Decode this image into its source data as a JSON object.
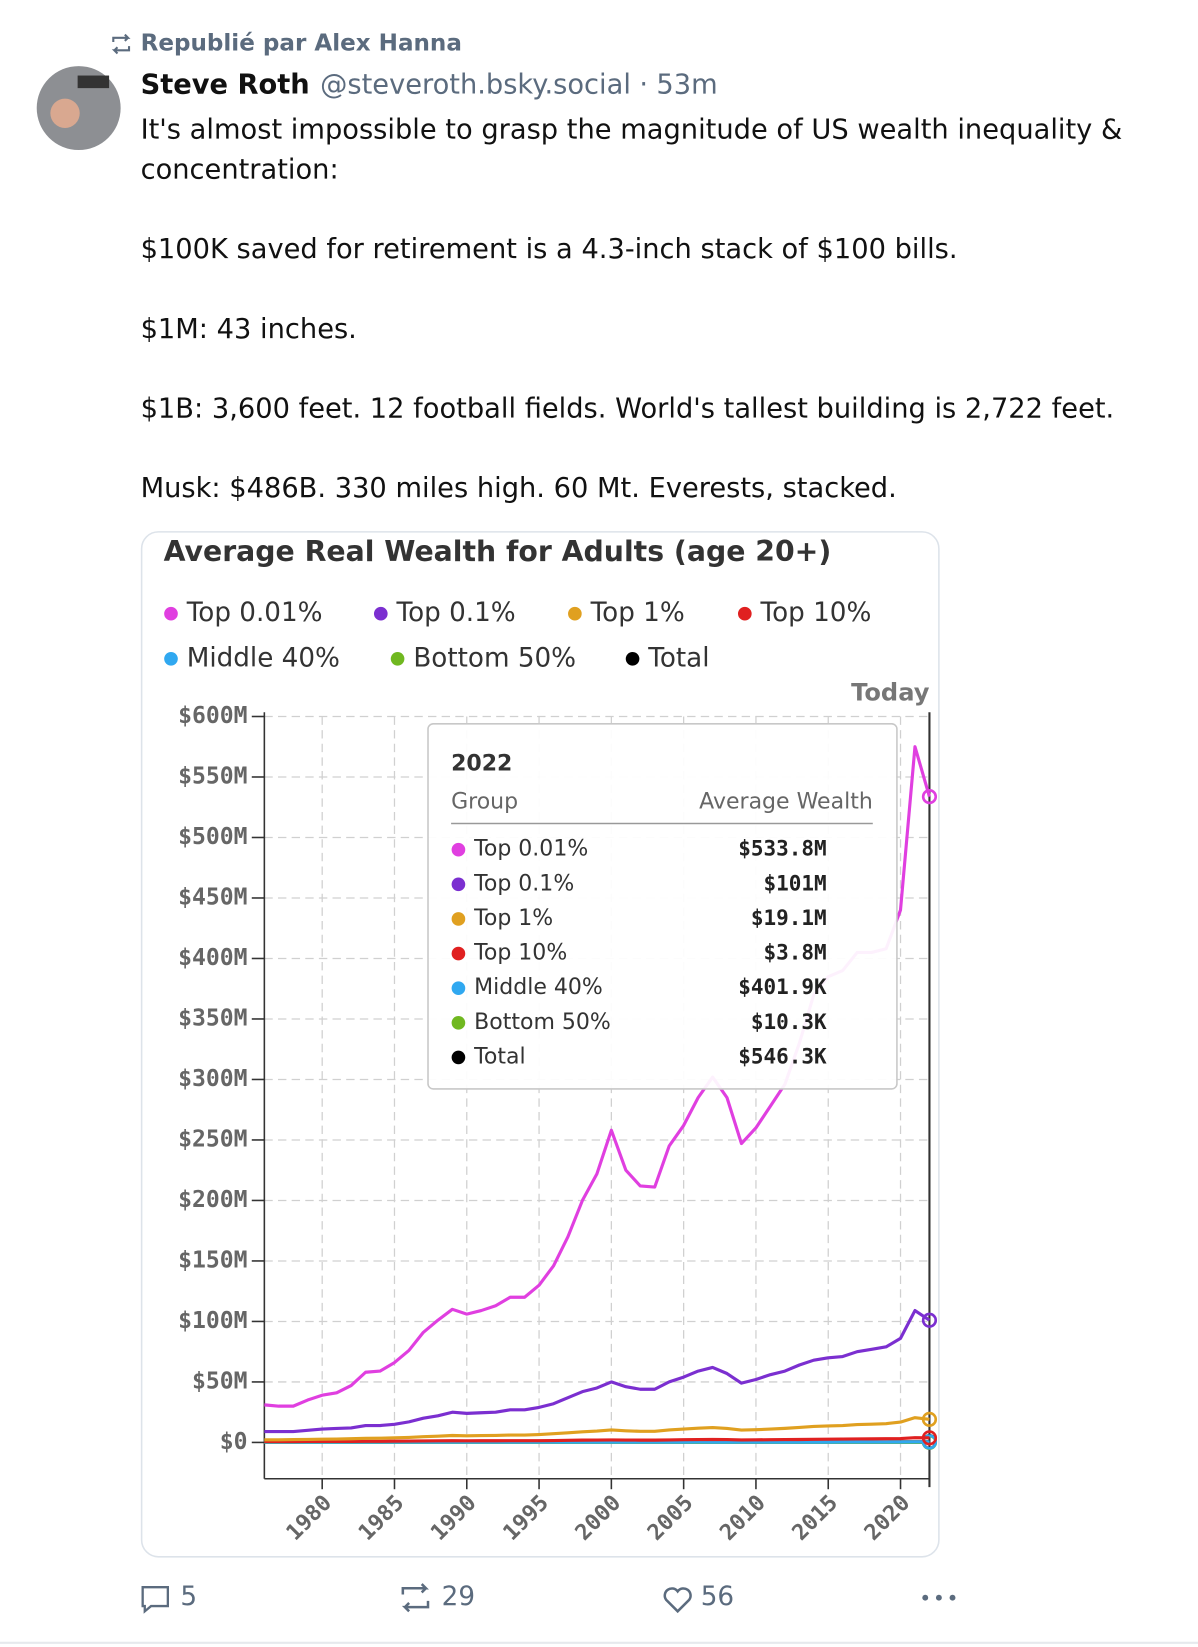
{
  "repost": "Republié par Alex Hanna",
  "author": {
    "name": "Steve Roth",
    "handle": "@steveroth.bsky.social",
    "time": "53m"
  },
  "text": [
    "It's almost impossible to grasp the magnitude of US wealth inequality & concentration:",
    "$100K saved for retirement is a 4.3-inch stack of $100 bills.",
    "$1M: 43 inches.",
    "$1B: 3,600 feet. 12 football fields. World's tallest building is 2,722 feet.",
    "Musk: $486B. 330 miles high. 60 Mt. Everests, stacked."
  ],
  "actions": {
    "replies": 5,
    "reposts": 29,
    "likes": 56
  },
  "chart_data": {
    "type": "line",
    "title": "Average Real Wealth for Adults (age 20+)",
    "annotation": "Today",
    "x": [
      1976,
      1977,
      1978,
      1979,
      1980,
      1981,
      1982,
      1983,
      1984,
      1985,
      1986,
      1987,
      1988,
      1989,
      1990,
      1991,
      1992,
      1993,
      1994,
      1995,
      1996,
      1997,
      1998,
      1999,
      2000,
      2001,
      2002,
      2003,
      2004,
      2005,
      2006,
      2007,
      2008,
      2009,
      2010,
      2011,
      2012,
      2013,
      2014,
      2015,
      2016,
      2017,
      2018,
      2019,
      2020,
      2021,
      2022
    ],
    "xlim": [
      1976,
      2022
    ],
    "xticks": [
      1980,
      1985,
      1990,
      1995,
      2000,
      2005,
      2010,
      2015,
      2020
    ],
    "ylim": [
      -30,
      600
    ],
    "yticks": [
      {
        "value": 0,
        "label": "$0"
      },
      {
        "value": 50,
        "label": "$50M"
      },
      {
        "value": 100,
        "label": "$100M"
      },
      {
        "value": 150,
        "label": "$150M"
      },
      {
        "value": 200,
        "label": "$200M"
      },
      {
        "value": 250,
        "label": "$250M"
      },
      {
        "value": 300,
        "label": "$300M"
      },
      {
        "value": 350,
        "label": "$350M"
      },
      {
        "value": 400,
        "label": "$400M"
      },
      {
        "value": 450,
        "label": "$450M"
      },
      {
        "value": 500,
        "label": "$500M"
      },
      {
        "value": 550,
        "label": "$550M"
      },
      {
        "value": 600,
        "label": "$600M"
      }
    ],
    "grid": true,
    "series": [
      {
        "name": "Top 0.01%",
        "color": "#e03fe0",
        "values": [
          31,
          30,
          30,
          35,
          39,
          41,
          47,
          58,
          59,
          66,
          76,
          91,
          101,
          110,
          106,
          109,
          113,
          120,
          120,
          130,
          146,
          170,
          200,
          222,
          258,
          225,
          212,
          211,
          245,
          262,
          285,
          302,
          285,
          247,
          260,
          278,
          296,
          330,
          370,
          385,
          390,
          405,
          405,
          408,
          440,
          575,
          533.8
        ]
      },
      {
        "name": "Top 0.1%",
        "color": "#7b2fd0",
        "values": [
          9,
          9,
          9,
          10,
          11,
          11.5,
          12,
          14,
          14,
          15,
          17,
          20,
          22,
          25,
          24,
          24.5,
          25,
          27,
          27,
          29,
          32,
          37,
          42,
          45,
          50,
          46,
          44,
          44,
          50,
          54,
          59,
          62,
          57,
          49,
          52,
          56,
          59,
          64,
          68,
          70,
          71,
          75,
          77,
          79,
          86,
          109,
          101
        ]
      },
      {
        "name": "Top 1%",
        "color": "#e0a020",
        "values": [
          2.2,
          2.2,
          2.3,
          2.5,
          2.7,
          2.8,
          3,
          3.4,
          3.5,
          3.8,
          4.2,
          4.8,
          5.2,
          5.7,
          5.5,
          5.6,
          5.8,
          6.1,
          6.1,
          6.5,
          7.2,
          8,
          8.8,
          9.4,
          10.3,
          9.6,
          9.2,
          9.2,
          10.3,
          11,
          11.8,
          12.3,
          11.5,
          10.2,
          10.5,
          11,
          11.6,
          12.4,
          13.2,
          13.6,
          14,
          14.7,
          15.1,
          15.5,
          16.8,
          20.5,
          19.1
        ]
      },
      {
        "name": "Top 10%",
        "color": "#e02020",
        "values": [
          0.7,
          0.7,
          0.72,
          0.76,
          0.8,
          0.82,
          0.86,
          0.94,
          0.96,
          1.02,
          1.1,
          1.2,
          1.28,
          1.36,
          1.34,
          1.35,
          1.38,
          1.44,
          1.44,
          1.5,
          1.6,
          1.74,
          1.88,
          1.98,
          2.1,
          2.0,
          1.94,
          1.94,
          2.12,
          2.24,
          2.36,
          2.44,
          2.3,
          2.1,
          2.14,
          2.22,
          2.32,
          2.46,
          2.6,
          2.68,
          2.74,
          2.86,
          2.94,
          3.0,
          3.24,
          3.9,
          3.8
        ]
      },
      {
        "name": "Middle 40%",
        "color": "#30a8f0",
        "values": [
          0.15,
          0.15,
          0.16,
          0.16,
          0.17,
          0.17,
          0.17,
          0.18,
          0.18,
          0.19,
          0.19,
          0.2,
          0.21,
          0.21,
          0.21,
          0.21,
          0.21,
          0.21,
          0.21,
          0.22,
          0.22,
          0.23,
          0.24,
          0.25,
          0.26,
          0.26,
          0.26,
          0.26,
          0.28,
          0.3,
          0.31,
          0.3,
          0.27,
          0.25,
          0.24,
          0.24,
          0.25,
          0.27,
          0.28,
          0.3,
          0.31,
          0.32,
          0.33,
          0.34,
          0.36,
          0.41,
          0.4019
        ]
      },
      {
        "name": "Bottom 50%",
        "color": "#70b820",
        "values": [
          0.006,
          0.006,
          0.006,
          0.007,
          0.007,
          0.007,
          0.007,
          0.007,
          0.007,
          0.008,
          0.008,
          0.008,
          0.008,
          0.008,
          0.008,
          0.008,
          0.008,
          0.008,
          0.008,
          0.008,
          0.008,
          0.008,
          0.008,
          0.008,
          0.008,
          0.008,
          0.008,
          0.008,
          0.008,
          0.008,
          0.007,
          0.006,
          0.005,
          0.004,
          0.004,
          0.004,
          0.004,
          0.005,
          0.005,
          0.006,
          0.006,
          0.007,
          0.007,
          0.008,
          0.009,
          0.011,
          0.0103
        ]
      },
      {
        "name": "Total",
        "color": "#000000",
        "values": [
          0.2,
          0.2,
          0.21,
          0.21,
          0.22,
          0.22,
          0.23,
          0.24,
          0.24,
          0.25,
          0.26,
          0.27,
          0.28,
          0.29,
          0.28,
          0.28,
          0.29,
          0.29,
          0.29,
          0.3,
          0.31,
          0.33,
          0.35,
          0.36,
          0.38,
          0.37,
          0.36,
          0.36,
          0.39,
          0.41,
          0.43,
          0.43,
          0.4,
          0.37,
          0.37,
          0.37,
          0.38,
          0.4,
          0.42,
          0.43,
          0.44,
          0.45,
          0.46,
          0.47,
          0.5,
          0.56,
          0.5463
        ]
      }
    ],
    "tooltip": {
      "title": "2022",
      "group_header": "Group",
      "value_header": "Average Wealth",
      "values": [
        "$533.8M",
        "$101M",
        "$19.1M",
        "$3.8M",
        "$401.9K",
        "$10.3K",
        "$546.3K"
      ]
    }
  }
}
